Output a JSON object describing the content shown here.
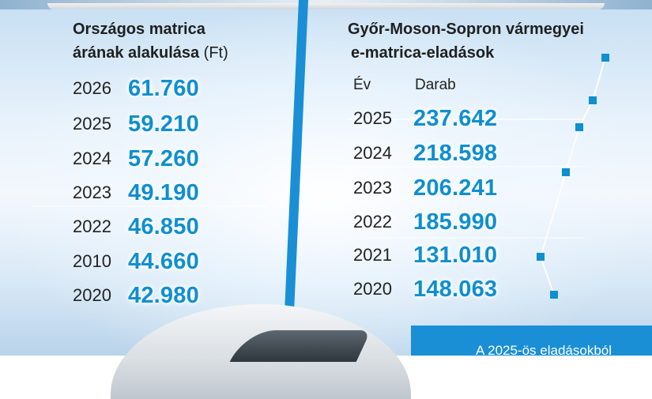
{
  "left_panel": {
    "title_line1": "Országos matrica",
    "title_line2_bold": "árának alakulása",
    "title_line2_unit": " (Ft)",
    "rows": [
      {
        "year": "2026",
        "value": "61.760"
      },
      {
        "year": "2025",
        "value": "59.210"
      },
      {
        "year": "2024",
        "value": "57.260"
      },
      {
        "year": "2023",
        "value": "49.190"
      },
      {
        "year": "2022",
        "value": "46.850"
      },
      {
        "year": "2010",
        "value": "44.660"
      },
      {
        "year": "2020",
        "value": "42.980"
      }
    ]
  },
  "right_panel": {
    "title_line1": "Győr-Moson-Sopron vármegyei",
    "title_line2": "e-matrica-eladások",
    "col_year": "Év",
    "col_count": "Darab",
    "rows": [
      {
        "year": "2025",
        "value": "237.642"
      },
      {
        "year": "2024",
        "value": "218.598"
      },
      {
        "year": "2023",
        "value": "206.241"
      },
      {
        "year": "2022",
        "value": "185.990"
      },
      {
        "year": "2021",
        "value": "131.010"
      },
      {
        "year": "2020",
        "value": "148.063"
      }
    ]
  },
  "footer": {
    "text": "A 2025-ös eladásokból"
  },
  "colors": {
    "accent": "#0d8fd0",
    "footer_bg": "#1a8fd6"
  }
}
